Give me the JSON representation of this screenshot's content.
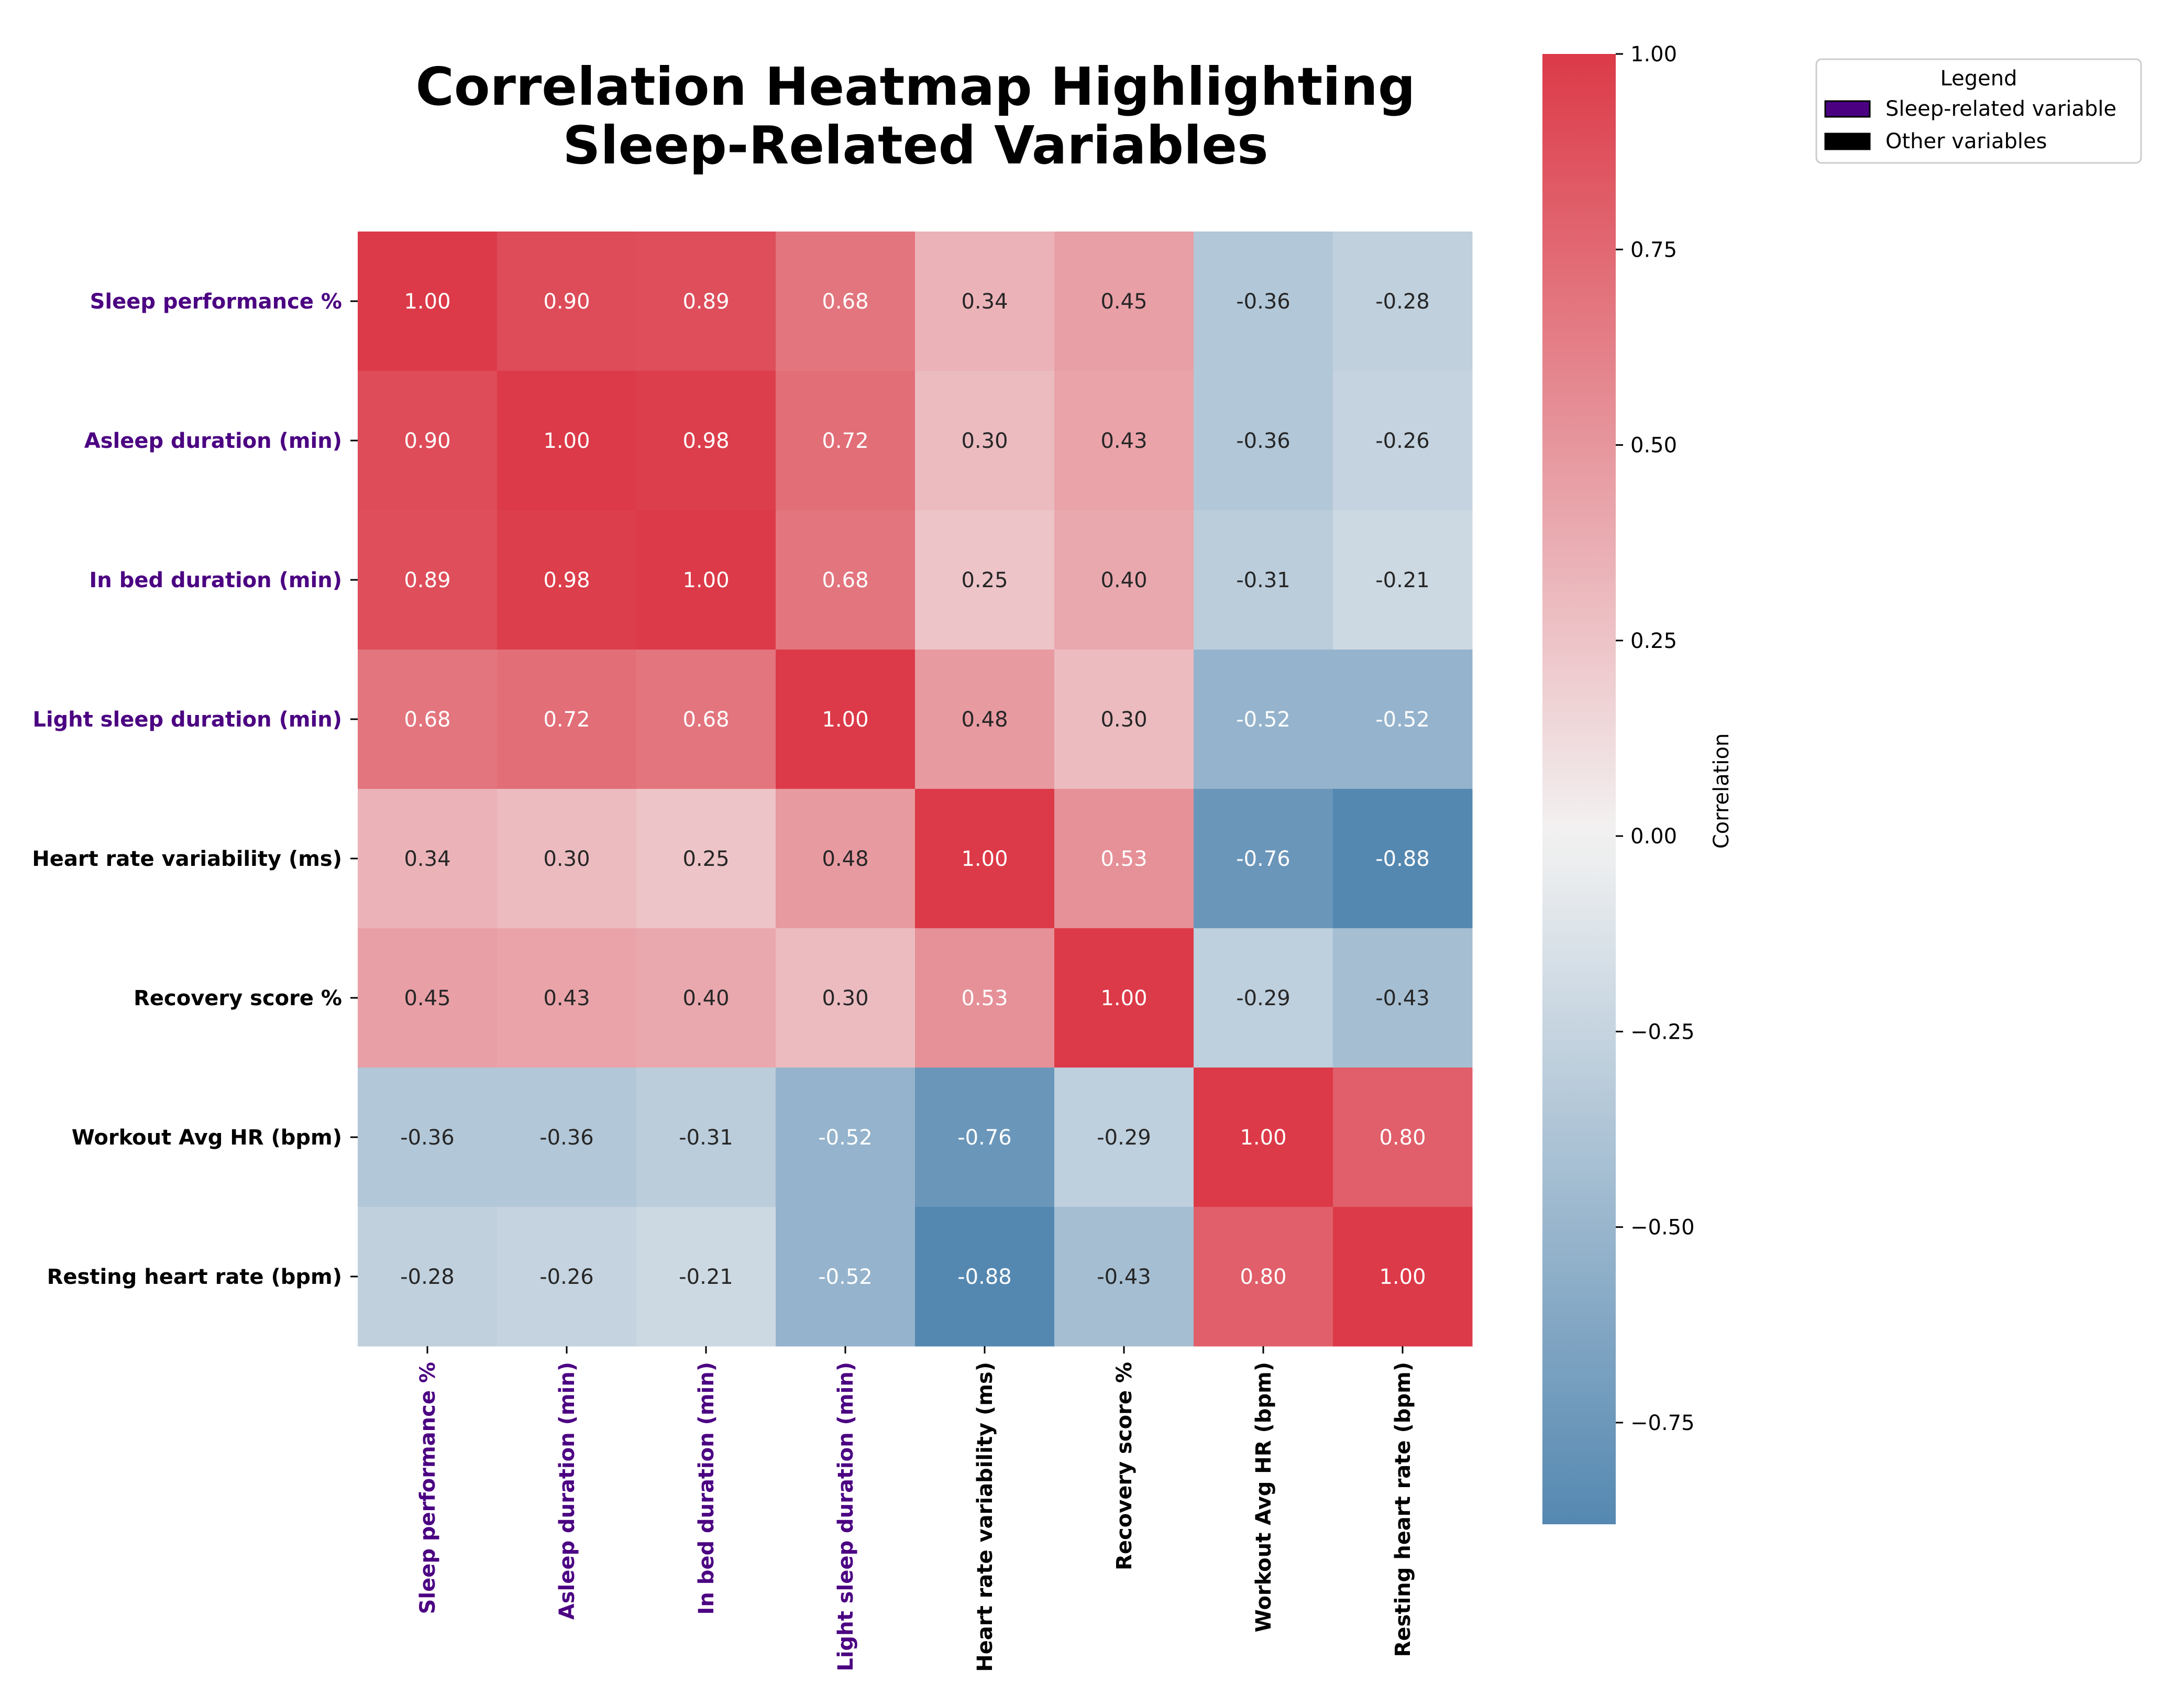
{
  "chart_data": {
    "type": "heatmap",
    "title": "Correlation Heatmap Highlighting\nSleep-Related Variables",
    "variables": [
      "Sleep performance %",
      "Asleep duration (min)",
      "In bed duration (min)",
      "Light sleep duration (min)",
      "Heart rate variability (ms)",
      "Recovery score %",
      "Workout Avg HR (bpm)",
      "Resting heart rate (bpm)"
    ],
    "sleep_related": [
      true,
      true,
      true,
      true,
      false,
      false,
      false,
      false
    ],
    "values": [
      [
        1.0,
        0.9,
        0.89,
        0.68,
        0.34,
        0.45,
        -0.36,
        -0.28
      ],
      [
        0.9,
        1.0,
        0.98,
        0.72,
        0.3,
        0.43,
        -0.36,
        -0.26
      ],
      [
        0.89,
        0.98,
        1.0,
        0.68,
        0.25,
        0.4,
        -0.31,
        -0.21
      ],
      [
        0.68,
        0.72,
        0.68,
        1.0,
        0.48,
        0.3,
        -0.52,
        -0.52
      ],
      [
        0.34,
        0.3,
        0.25,
        0.48,
        1.0,
        0.53,
        -0.76,
        -0.88
      ],
      [
        0.45,
        0.43,
        0.4,
        0.3,
        0.53,
        1.0,
        -0.29,
        -0.43
      ],
      [
        -0.36,
        -0.36,
        -0.31,
        -0.52,
        -0.76,
        -0.29,
        1.0,
        0.8
      ],
      [
        -0.28,
        -0.26,
        -0.21,
        -0.52,
        -0.88,
        -0.43,
        0.8,
        1.0
      ]
    ],
    "colorbar": {
      "label": "Correlation",
      "range": [
        -0.88,
        1.0
      ],
      "ticks": [
        1.0,
        0.75,
        0.5,
        0.25,
        0.0,
        -0.25,
        -0.5,
        -0.75
      ],
      "tick_labels": [
        "1.00",
        "0.75",
        "0.50",
        "0.25",
        "0.00",
        "−0.25",
        "−0.50",
        "−0.75"
      ],
      "low_color": "#5588b1",
      "mid_color": "#f2f2f2",
      "high_color": "#dc3a48"
    },
    "legend": {
      "title": "Legend",
      "placement": "top-right",
      "entries": [
        {
          "label": "Sleep-related variable",
          "color": "#4b0082"
        },
        {
          "label": "Other variables",
          "color": "#000000"
        }
      ]
    },
    "colors": {
      "sleep_label": "#4b0082",
      "other_label": "#000000"
    }
  }
}
